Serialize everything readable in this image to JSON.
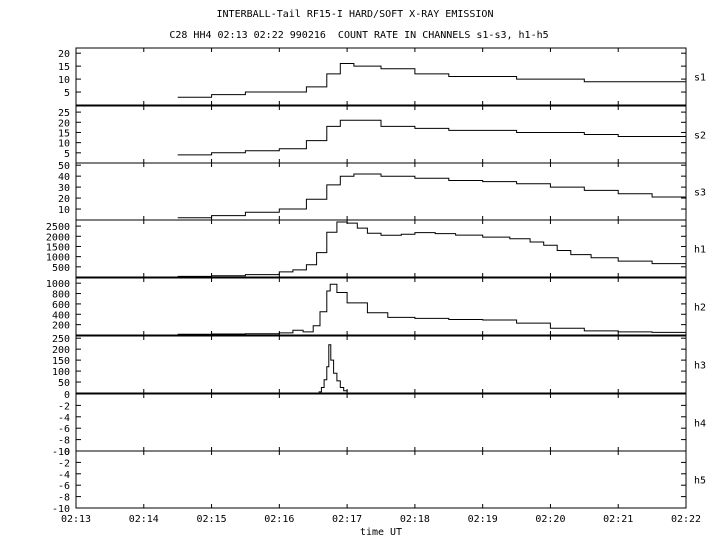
{
  "chart_data": {
    "type": "line",
    "title": "INTERBALL-Tail RF15-I HARD/SOFT X-RAY EMISSION",
    "subtitle": "C28 HH4 02:13 02:22 990216  COUNT RATE IN CHANNELS s1-s3, h1-h5",
    "xlabel": "time UT",
    "x_ticks": [
      "02:13",
      "02:14",
      "02:15",
      "02:16",
      "02:17",
      "02:18",
      "02:19",
      "02:20",
      "02:21",
      "02:22"
    ],
    "x_range_minutes": [
      0,
      9
    ],
    "grid": false,
    "panels": [
      {
        "name": "s1",
        "ylim": [
          0,
          22
        ],
        "y_ticks": [
          5,
          10,
          15,
          20
        ],
        "points": [
          [
            1.5,
            3
          ],
          [
            2.0,
            4
          ],
          [
            2.5,
            5
          ],
          [
            3.0,
            5
          ],
          [
            3.4,
            7
          ],
          [
            3.7,
            12
          ],
          [
            3.9,
            16
          ],
          [
            4.1,
            15
          ],
          [
            4.5,
            14
          ],
          [
            5.0,
            12
          ],
          [
            5.5,
            11
          ],
          [
            6.0,
            11
          ],
          [
            6.5,
            10
          ],
          [
            7.0,
            10
          ],
          [
            7.5,
            9
          ],
          [
            8.0,
            9
          ],
          [
            8.5,
            9
          ],
          [
            9.0,
            9
          ]
        ]
      },
      {
        "name": "s2",
        "ylim": [
          0,
          28
        ],
        "y_ticks": [
          5,
          10,
          15,
          20,
          25
        ],
        "points": [
          [
            1.5,
            4
          ],
          [
            2.0,
            5
          ],
          [
            2.5,
            6
          ],
          [
            3.0,
            7
          ],
          [
            3.4,
            11
          ],
          [
            3.7,
            18
          ],
          [
            3.9,
            21
          ],
          [
            4.1,
            21
          ],
          [
            4.5,
            18
          ],
          [
            5.0,
            17
          ],
          [
            5.5,
            16
          ],
          [
            6.0,
            16
          ],
          [
            6.5,
            15
          ],
          [
            7.0,
            15
          ],
          [
            7.5,
            14
          ],
          [
            8.0,
            13
          ],
          [
            8.5,
            13
          ],
          [
            9.0,
            12
          ]
        ]
      },
      {
        "name": "s3",
        "ylim": [
          0,
          52
        ],
        "y_ticks": [
          10,
          20,
          30,
          40,
          50
        ],
        "points": [
          [
            1.5,
            2
          ],
          [
            2.0,
            4
          ],
          [
            2.5,
            7
          ],
          [
            3.0,
            10
          ],
          [
            3.4,
            19
          ],
          [
            3.7,
            32
          ],
          [
            3.9,
            40
          ],
          [
            4.1,
            42
          ],
          [
            4.5,
            40
          ],
          [
            5.0,
            38
          ],
          [
            5.5,
            36
          ],
          [
            6.0,
            35
          ],
          [
            6.5,
            33
          ],
          [
            7.0,
            30
          ],
          [
            7.5,
            27
          ],
          [
            8.0,
            24
          ],
          [
            8.5,
            21
          ],
          [
            9.0,
            18
          ]
        ]
      },
      {
        "name": "h1",
        "ylim": [
          0,
          2800
        ],
        "y_ticks": [
          500,
          1000,
          1500,
          2000,
          2500
        ],
        "points": [
          [
            1.5,
            30
          ],
          [
            2.0,
            60
          ],
          [
            2.5,
            120
          ],
          [
            3.0,
            250
          ],
          [
            3.2,
            350
          ],
          [
            3.4,
            600
          ],
          [
            3.55,
            1200
          ],
          [
            3.7,
            2200
          ],
          [
            3.85,
            2700
          ],
          [
            4.0,
            2650
          ],
          [
            4.15,
            2400
          ],
          [
            4.3,
            2150
          ],
          [
            4.5,
            2050
          ],
          [
            4.8,
            2100
          ],
          [
            5.0,
            2180
          ],
          [
            5.3,
            2130
          ],
          [
            5.6,
            2060
          ],
          [
            6.0,
            1960
          ],
          [
            6.4,
            1880
          ],
          [
            6.7,
            1720
          ],
          [
            6.9,
            1560
          ],
          [
            7.1,
            1300
          ],
          [
            7.3,
            1100
          ],
          [
            7.6,
            950
          ],
          [
            8.0,
            780
          ],
          [
            8.5,
            660
          ],
          [
            9.0,
            560
          ]
        ]
      },
      {
        "name": "h2",
        "ylim": [
          0,
          1100
        ],
        "y_ticks": [
          200,
          400,
          600,
          800,
          1000
        ],
        "points": [
          [
            1.5,
            15
          ],
          [
            2.0,
            20
          ],
          [
            2.5,
            25
          ],
          [
            3.0,
            40
          ],
          [
            3.2,
            90
          ],
          [
            3.35,
            60
          ],
          [
            3.5,
            180
          ],
          [
            3.6,
            450
          ],
          [
            3.7,
            850
          ],
          [
            3.75,
            980
          ],
          [
            3.85,
            820
          ],
          [
            4.0,
            620
          ],
          [
            4.3,
            430
          ],
          [
            4.6,
            340
          ],
          [
            5.0,
            320
          ],
          [
            5.5,
            300
          ],
          [
            6.0,
            290
          ],
          [
            6.5,
            230
          ],
          [
            7.0,
            130
          ],
          [
            7.5,
            80
          ],
          [
            8.0,
            60
          ],
          [
            8.5,
            50
          ],
          [
            9.0,
            40
          ]
        ]
      },
      {
        "name": "h3",
        "ylim": [
          0,
          260
        ],
        "y_ticks": [
          50,
          100,
          150,
          200,
          250
        ],
        "points": [
          [
            3.58,
            5
          ],
          [
            3.62,
            25
          ],
          [
            3.66,
            60
          ],
          [
            3.7,
            120
          ],
          [
            3.73,
            220
          ],
          [
            3.76,
            150
          ],
          [
            3.8,
            90
          ],
          [
            3.85,
            55
          ],
          [
            3.9,
            25
          ],
          [
            3.95,
            10
          ],
          [
            4.0,
            0
          ]
        ]
      },
      {
        "name": "h4",
        "ylim": [
          -10,
          0
        ],
        "y_ticks": [
          -10,
          -8,
          -6,
          -4,
          -2,
          0
        ],
        "points": []
      },
      {
        "name": "h5",
        "ylim": [
          -10,
          0
        ],
        "y_ticks": [
          -10,
          -8,
          -6,
          -4,
          -2,
          0
        ],
        "points": []
      }
    ]
  }
}
